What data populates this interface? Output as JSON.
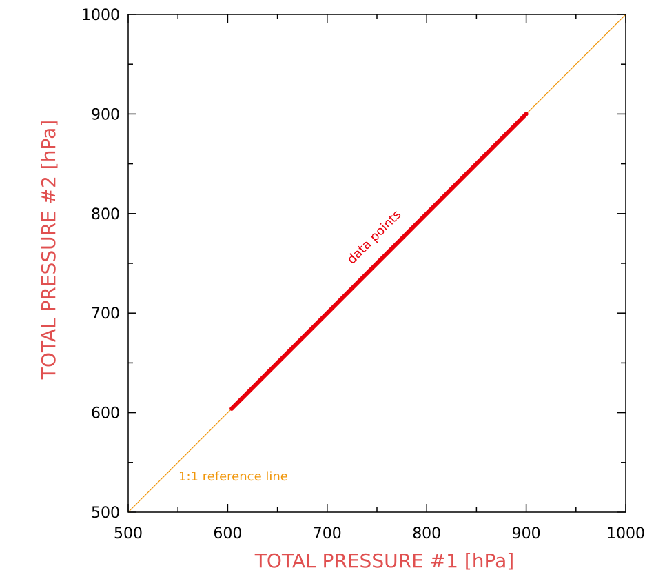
{
  "chart_data": {
    "type": "scatter",
    "title": "",
    "xlabel": "TOTAL PRESSURE #1 [hPa]",
    "ylabel": "TOTAL PRESSURE #2 [hPa]",
    "xlim": [
      500,
      1000
    ],
    "ylim": [
      500,
      1000
    ],
    "x_ticks": [
      "500",
      "600",
      "700",
      "800",
      "900",
      "1000"
    ],
    "y_ticks": [
      "500",
      "600",
      "700",
      "800",
      "900",
      "1000"
    ],
    "grid": false,
    "series": [
      {
        "name": "data points",
        "color": "#e8000b",
        "x": [
          604,
          620,
          640,
          660,
          680,
          700,
          720,
          740,
          760,
          780,
          800,
          820,
          840,
          860,
          880,
          900
        ],
        "y": [
          604,
          620,
          640,
          660,
          680,
          700,
          720,
          740,
          760,
          780,
          800,
          820,
          840,
          860,
          880,
          900
        ]
      }
    ],
    "reference_line": {
      "label": "1:1 reference line",
      "color": "#f0960a",
      "x": [
        500,
        1000
      ],
      "y": [
        500,
        1000
      ]
    },
    "colors": {
      "axis_title": "#e05050",
      "data": "#e8000b",
      "reference": "#f0960a"
    }
  }
}
